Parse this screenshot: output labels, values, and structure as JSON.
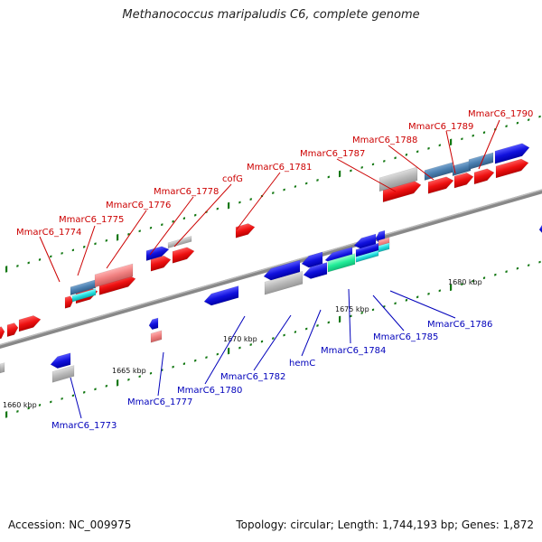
{
  "title": "Methanococcus maripaludis C6, complete genome",
  "footer": {
    "accession": "Accession: NC_009975",
    "summary": "Topology: circular; Length: 1,744,193 bp; Genes: 1,872"
  },
  "colors": {
    "forward_label": "#cc0000",
    "reverse_label": "#0000bb",
    "gene_red": "#ee1111",
    "gene_blue": "#1111dd",
    "gene_grey": "#b0b0b0",
    "gene_cyan": "#22dddd",
    "gene_steelblue": "#4a7fb0",
    "gene_pink": "#f08080",
    "gene_green": "#22ee99",
    "backbone": "#888888",
    "tick_green": "#117711"
  },
  "scale": {
    "ticks": [
      {
        "label": "1660 kbp"
      },
      {
        "label": "1665 kbp"
      },
      {
        "label": "1670 kbp"
      },
      {
        "label": "1675 kbp"
      },
      {
        "label": "1680 kbp"
      }
    ]
  },
  "labels": {
    "forward": [
      {
        "text": "MmarC6_1774"
      },
      {
        "text": "MmarC6_1775"
      },
      {
        "text": "MmarC6_1776"
      },
      {
        "text": "MmarC6_1778"
      },
      {
        "text": "cofG"
      },
      {
        "text": "MmarC6_1781"
      },
      {
        "text": "MmarC6_1787"
      },
      {
        "text": "MmarC6_1788"
      },
      {
        "text": "MmarC6_1789"
      },
      {
        "text": "MmarC6_1790"
      }
    ],
    "reverse": [
      {
        "text": "MmarC6_1773"
      },
      {
        "text": "MmarC6_1777"
      },
      {
        "text": "MmarC6_1780"
      },
      {
        "text": "MmarC6_1782"
      },
      {
        "text": "hemC"
      },
      {
        "text": "MmarC6_1784"
      },
      {
        "text": "MmarC6_1785"
      },
      {
        "text": "MmarC6_1786"
      }
    ]
  }
}
